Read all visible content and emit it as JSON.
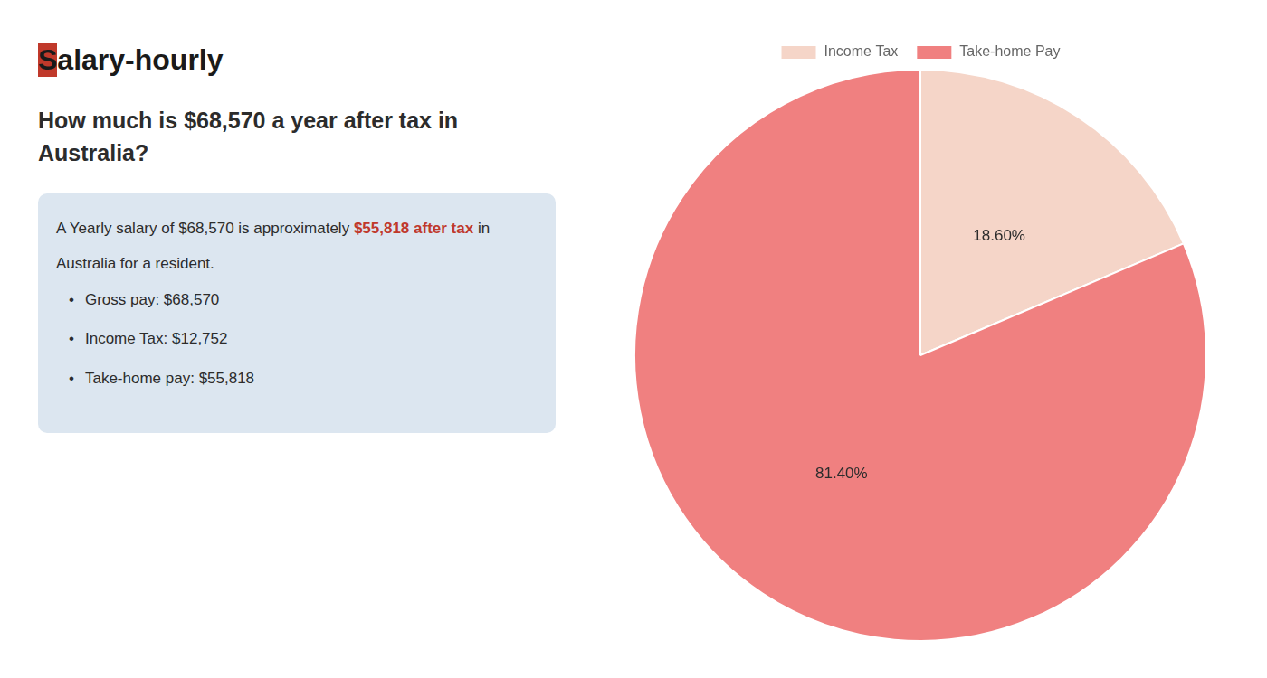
{
  "chart_data": {
    "type": "pie",
    "title": [
      "How much is $68,570 a year after tax in",
      "Australia?"
    ],
    "annotations": [
      {
        "segments": [
          {
            "text": "S",
            "background": "#c0392b"
          },
          {
            "text": "alary-hourly"
          }
        ]
      },
      {
        "background": "#dce6f0",
        "lines": [
          [
            {
              "text": "A Yearly salary of $68,570 is approximately "
            },
            {
              "text": "$55,818 after tax",
              "color": "#c0392b"
            },
            {
              "text": " in"
            }
          ],
          [
            {
              "text": "Australia for a resident."
            }
          ],
          [
            {
              "text": "•"
            },
            {
              "text": "Gross pay: $68,570"
            }
          ],
          [
            {
              "text": "•"
            },
            {
              "text": "Income Tax: $12,752"
            }
          ],
          [
            {
              "text": "•"
            },
            {
              "text": "Take-home pay: $55,818"
            }
          ]
        ]
      }
    ],
    "categories": [
      "Income Tax",
      "Take-home Pay"
    ],
    "values": [
      18.6,
      81.4
    ],
    "value_labels": [
      "18.60%",
      "81.40%"
    ],
    "colors": [
      "#f5d5c8",
      "#f08080"
    ],
    "data_labels": true,
    "legend": "top"
  }
}
